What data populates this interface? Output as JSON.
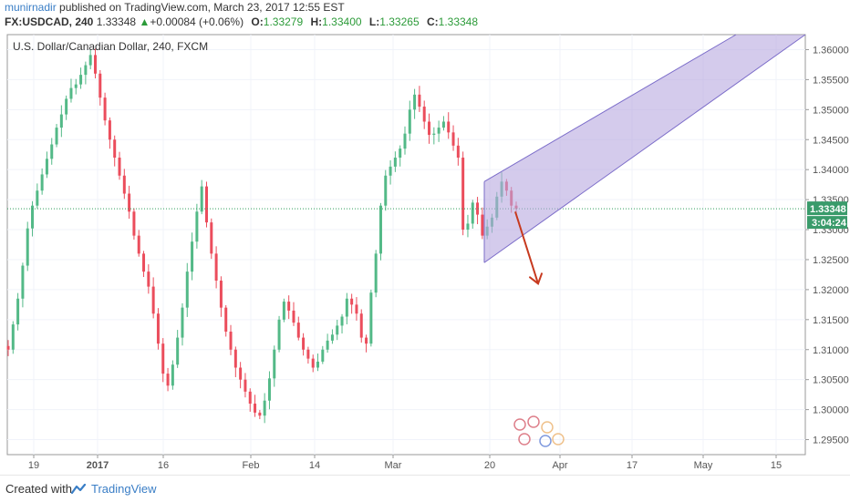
{
  "header": {
    "author": "munirnadir",
    "published_text": " published on TradingView.com, March 23, 2017 12:55 EST",
    "symbol": "FX:USDCAD, 240",
    "last": "1.33348",
    "change_arrow": "▲",
    "change": "+0.00084 (+0.06%)",
    "open_label": "O:",
    "open": "1.33279",
    "high_label": "H:",
    "high": "1.33400",
    "low_label": "L:",
    "low": "1.33265",
    "close_label": "C:",
    "close": "1.33348"
  },
  "footer": {
    "created_with": "Created with",
    "brand": "TradingView"
  },
  "colors": {
    "up": "#53b987",
    "down": "#eb4d5c",
    "channel_fill": "#b7a8e0",
    "channel_line": "#7b6cc9",
    "arrow": "#c73a1f",
    "price_line": "#2e9e5b",
    "price_tag": "#3a9b6b"
  },
  "chart_data": {
    "type": "candlestick",
    "title": "U.S. Dollar/Canadian Dollar, 240, FXCM",
    "ylim": [
      1.2925,
      1.3625
    ],
    "y_ticks": [
      "1.36000",
      "1.35500",
      "1.35000",
      "1.34500",
      "1.34000",
      "1.33500",
      "1.33000",
      "1.32500",
      "1.32000",
      "1.31500",
      "1.31000",
      "1.30500",
      "1.30000",
      "1.29500"
    ],
    "x_ticks": [
      "19",
      "2017",
      "16",
      "Feb",
      "14",
      "Mar",
      "20",
      "Apr",
      "17",
      "May",
      "15"
    ],
    "current_price": "1.33348",
    "countdown": "3:04:24",
    "closes": [
      1.31,
      1.3142,
      1.3185,
      1.324,
      1.3302,
      1.334,
      1.3365,
      1.3392,
      1.3418,
      1.3442,
      1.347,
      1.3492,
      1.3518,
      1.3536,
      1.3542,
      1.3558,
      1.3574,
      1.3591,
      1.356,
      1.352,
      1.3482,
      1.345,
      1.342,
      1.339,
      1.336,
      1.333,
      1.329,
      1.326,
      1.323,
      1.3205,
      1.316,
      1.311,
      1.306,
      1.304,
      1.3075,
      1.312,
      1.317,
      1.323,
      1.328,
      1.333,
      1.3372,
      1.3312,
      1.326,
      1.3215,
      1.317,
      1.313,
      1.31,
      1.307,
      1.305,
      1.303,
      1.301,
      1.2995,
      1.299,
      1.3015,
      1.3052,
      1.31,
      1.315,
      1.318,
      1.3165,
      1.3145,
      1.312,
      1.31,
      1.3085,
      1.307,
      1.308,
      1.31,
      1.3115,
      1.3125,
      1.314,
      1.3155,
      1.3185,
      1.3175,
      1.316,
      1.312,
      1.311,
      1.3195,
      1.326,
      1.334,
      1.339,
      1.3405,
      1.342,
      1.3435,
      1.346,
      1.35,
      1.3525,
      1.3505,
      1.348,
      1.3458,
      1.346,
      1.347,
      1.348,
      1.3462,
      1.344,
      1.342,
      1.33,
      1.331,
      1.3345,
      1.3325,
      1.329,
      1.3305,
      1.332,
      1.3355,
      1.338,
      1.3365,
      1.334,
      1.3335
    ],
    "annotations": {
      "channel": {
        "start_date": "Mar 17",
        "end_date": "May 8",
        "upper_start": 1.338,
        "upper_end": 1.3625,
        "lower_start": 1.3245,
        "lower_end": 1.3625
      },
      "arrow": {
        "from_price": 1.333,
        "to_price": 1.321
      }
    }
  }
}
